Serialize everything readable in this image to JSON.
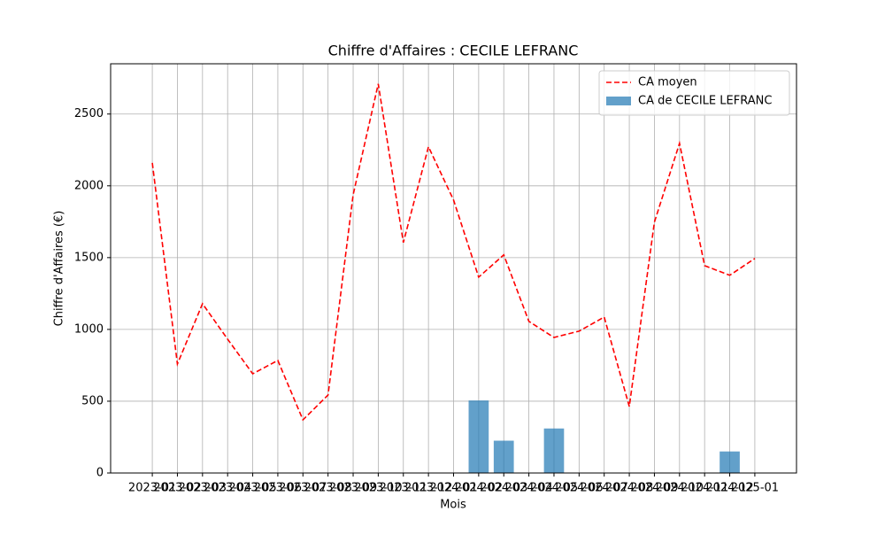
{
  "chart_data": {
    "type": "bar_line",
    "title": "Chiffre d'Affaires : CECILE LEFRANC",
    "xlabel": "Mois",
    "ylabel": "Chiffre d'Affaires (€)",
    "categories": [
      "2023-01",
      "2023-02",
      "2023-03",
      "2023-04",
      "2023-05",
      "2023-06",
      "2023-07",
      "2023-08",
      "2023-09",
      "2023-10",
      "2023-11",
      "2023-12",
      "2024-01",
      "2024-02",
      "2024-03",
      "2024-04",
      "2024-05",
      "2024-06",
      "2024-07",
      "2024-08",
      "2024-09",
      "2024-10",
      "2024-11",
      "2024-12",
      "2025-01"
    ],
    "series": [
      {
        "name": "CA moyen",
        "kind": "line",
        "color": "#ff0000",
        "linestyle": "dashed",
        "values": [
          2160,
          759,
          1179,
          932,
          691,
          784,
          370,
          543,
          1938,
          2710,
          1605,
          2272,
          1901,
          1364,
          1519,
          1056,
          944,
          988,
          1086,
          463,
          1747,
          2296,
          1444,
          1377,
          1494
        ]
      },
      {
        "name": "CA de CECILE LEFRANC",
        "kind": "bar",
        "color": "#1f77b4",
        "values": [
          null,
          null,
          null,
          null,
          null,
          null,
          null,
          null,
          null,
          null,
          null,
          null,
          null,
          505,
          225,
          null,
          310,
          null,
          null,
          null,
          null,
          null,
          null,
          150,
          null
        ]
      }
    ],
    "ylim": [
      0,
      2850
    ],
    "yticks": [
      0,
      500,
      1000,
      1500,
      2000,
      2500
    ],
    "grid": true,
    "legend": "upper right"
  }
}
